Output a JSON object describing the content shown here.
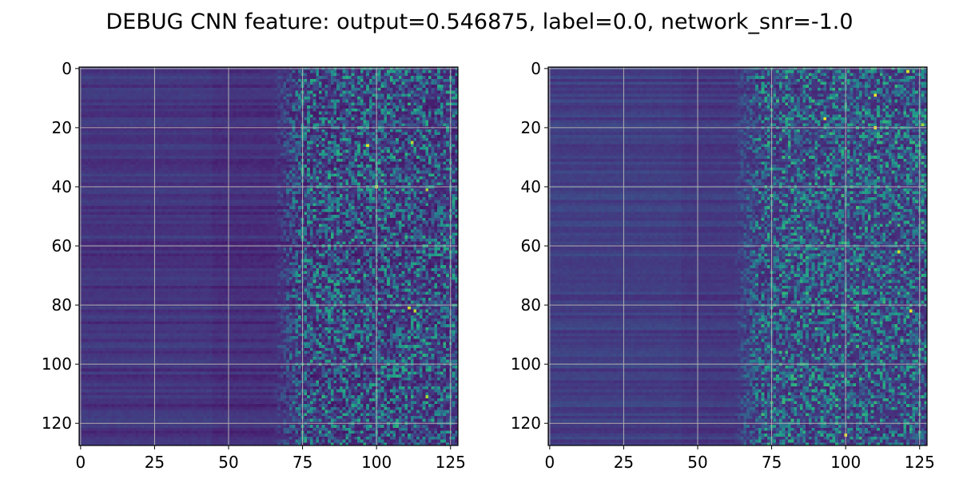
{
  "figure": {
    "title": "DEBUG CNN feature: output=0.546875, label=0.0, network_snr=-1.0"
  },
  "colors": {
    "background": "#ffffff",
    "grid": "#b0b0b0",
    "axis": "#000000",
    "colormap": [
      "#440154",
      "#472d7b",
      "#3b528b",
      "#2c728e",
      "#21918c",
      "#28ae80",
      "#5ec962",
      "#addc30",
      "#fde725"
    ]
  },
  "chart_data": [
    {
      "type": "heatmap",
      "colormap": "viridis",
      "rows": 128,
      "cols": 128,
      "xlim": [
        -0.5,
        127.5
      ],
      "ylim": [
        127.5,
        -0.5
      ],
      "x_ticks": [
        0,
        25,
        50,
        75,
        100,
        125
      ],
      "y_ticks": [
        0,
        20,
        40,
        60,
        80,
        100,
        120
      ],
      "x_tick_labels": [
        "0",
        "25",
        "50",
        "75",
        "100",
        "125"
      ],
      "y_tick_labels": [
        "0",
        "20",
        "40",
        "60",
        "80",
        "100",
        "120"
      ],
      "grid": true,
      "column_profile": {
        "dark_until_col": 65,
        "noisy_from_col": 75,
        "low_mean": 0.13,
        "high_mean": 0.3
      },
      "hot_pixels": [
        [
          26,
          97
        ],
        [
          25,
          112
        ],
        [
          40,
          100
        ],
        [
          41,
          117
        ],
        [
          81,
          111
        ],
        [
          82,
          113
        ],
        [
          111,
          117
        ]
      ]
    },
    {
      "type": "heatmap",
      "colormap": "viridis",
      "rows": 128,
      "cols": 128,
      "xlim": [
        -0.5,
        127.5
      ],
      "ylim": [
        127.5,
        -0.5
      ],
      "x_ticks": [
        0,
        25,
        50,
        75,
        100,
        125
      ],
      "y_ticks": [
        0,
        20,
        40,
        60,
        80,
        100,
        120
      ],
      "x_tick_labels": [
        "0",
        "25",
        "50",
        "75",
        "100",
        "125"
      ],
      "y_tick_labels": [
        "0",
        "20",
        "40",
        "60",
        "80",
        "100",
        "120"
      ],
      "grid": true,
      "column_profile": {
        "dark_until_col": 62,
        "noisy_from_col": 72,
        "low_mean": 0.16,
        "high_mean": 0.32
      },
      "hot_pixels": [
        [
          1,
          121
        ],
        [
          9,
          110
        ],
        [
          17,
          93
        ],
        [
          20,
          110
        ],
        [
          19,
          126
        ],
        [
          62,
          118
        ],
        [
          82,
          122
        ],
        [
          124,
          100
        ]
      ]
    }
  ]
}
